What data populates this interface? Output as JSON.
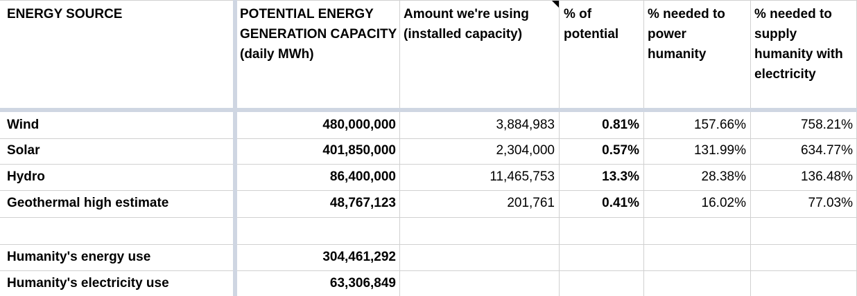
{
  "headers": [
    "ENERGY SOURCE",
    "POTENTIAL ENERGY GENERATION CAPACITY (daily MWh)",
    "Amount we're using (installed capacity)",
    "% of potential",
    "% needed to power humanity",
    "% needed to supply humanity with electricity"
  ],
  "rows": [
    [
      "Wind",
      "480,000,000",
      "3,884,983",
      "0.81%",
      "157.66%",
      "758.21%"
    ],
    [
      "Solar",
      "401,850,000",
      "2,304,000",
      "0.57%",
      "131.99%",
      "634.77%"
    ],
    [
      "Hydro",
      "86,400,000",
      "11,465,753",
      "13.3%",
      "28.38%",
      "136.48%"
    ],
    [
      "Geothermal high estimate",
      "48,767,123",
      "201,761",
      "0.41%",
      "16.02%",
      "77.03%"
    ]
  ],
  "totals": [
    [
      "Humanity's energy use",
      "304,461,292"
    ],
    [
      "Humanity's electricity use",
      "63,306,849"
    ]
  ],
  "colors": {
    "gridline": "#d0d0d0",
    "frozen_divider": "#cfd6e2"
  }
}
